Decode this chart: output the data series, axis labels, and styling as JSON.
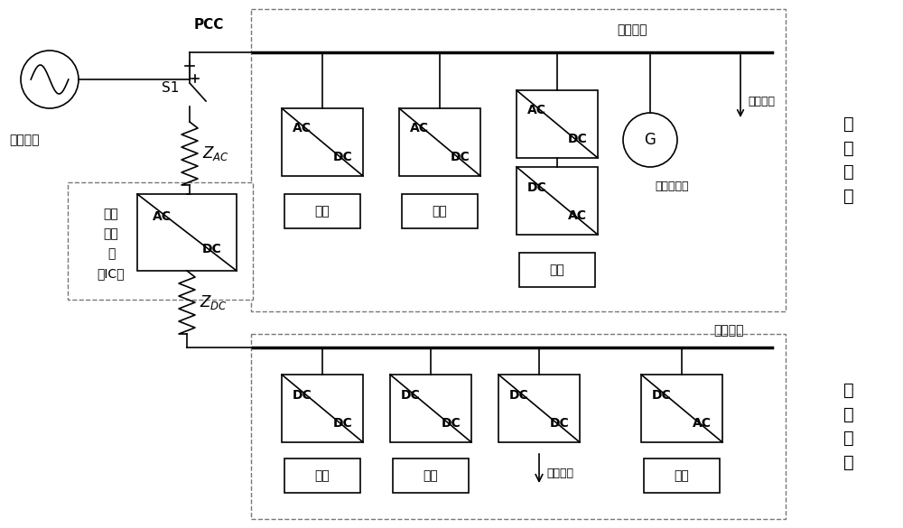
{
  "bg_color": "#ffffff",
  "line_color": "#000000",
  "fig_width": 10.0,
  "fig_height": 5.85,
  "texts": {
    "ac_grid": "交流电网",
    "pcc": "PCC",
    "s1": "S1",
    "ac_bus": "交流母线",
    "dc_bus": "直流母线",
    "ac_subnet": "交\n流\n子\n网",
    "dc_subnet": "直\n流\n子\n网",
    "ac_load": "交流负荷",
    "dc_load": "直流负荷",
    "small_gen": "小型发电机",
    "pv1": "光伏",
    "storage1": "储能",
    "wind1": "风机",
    "storage2": "储能",
    "pv2": "光伏",
    "wind2": "风机",
    "ic_line1": "接口",
    "ic_line2": "变换",
    "ic_line3": "器",
    "ic_line4": "（IC）"
  }
}
